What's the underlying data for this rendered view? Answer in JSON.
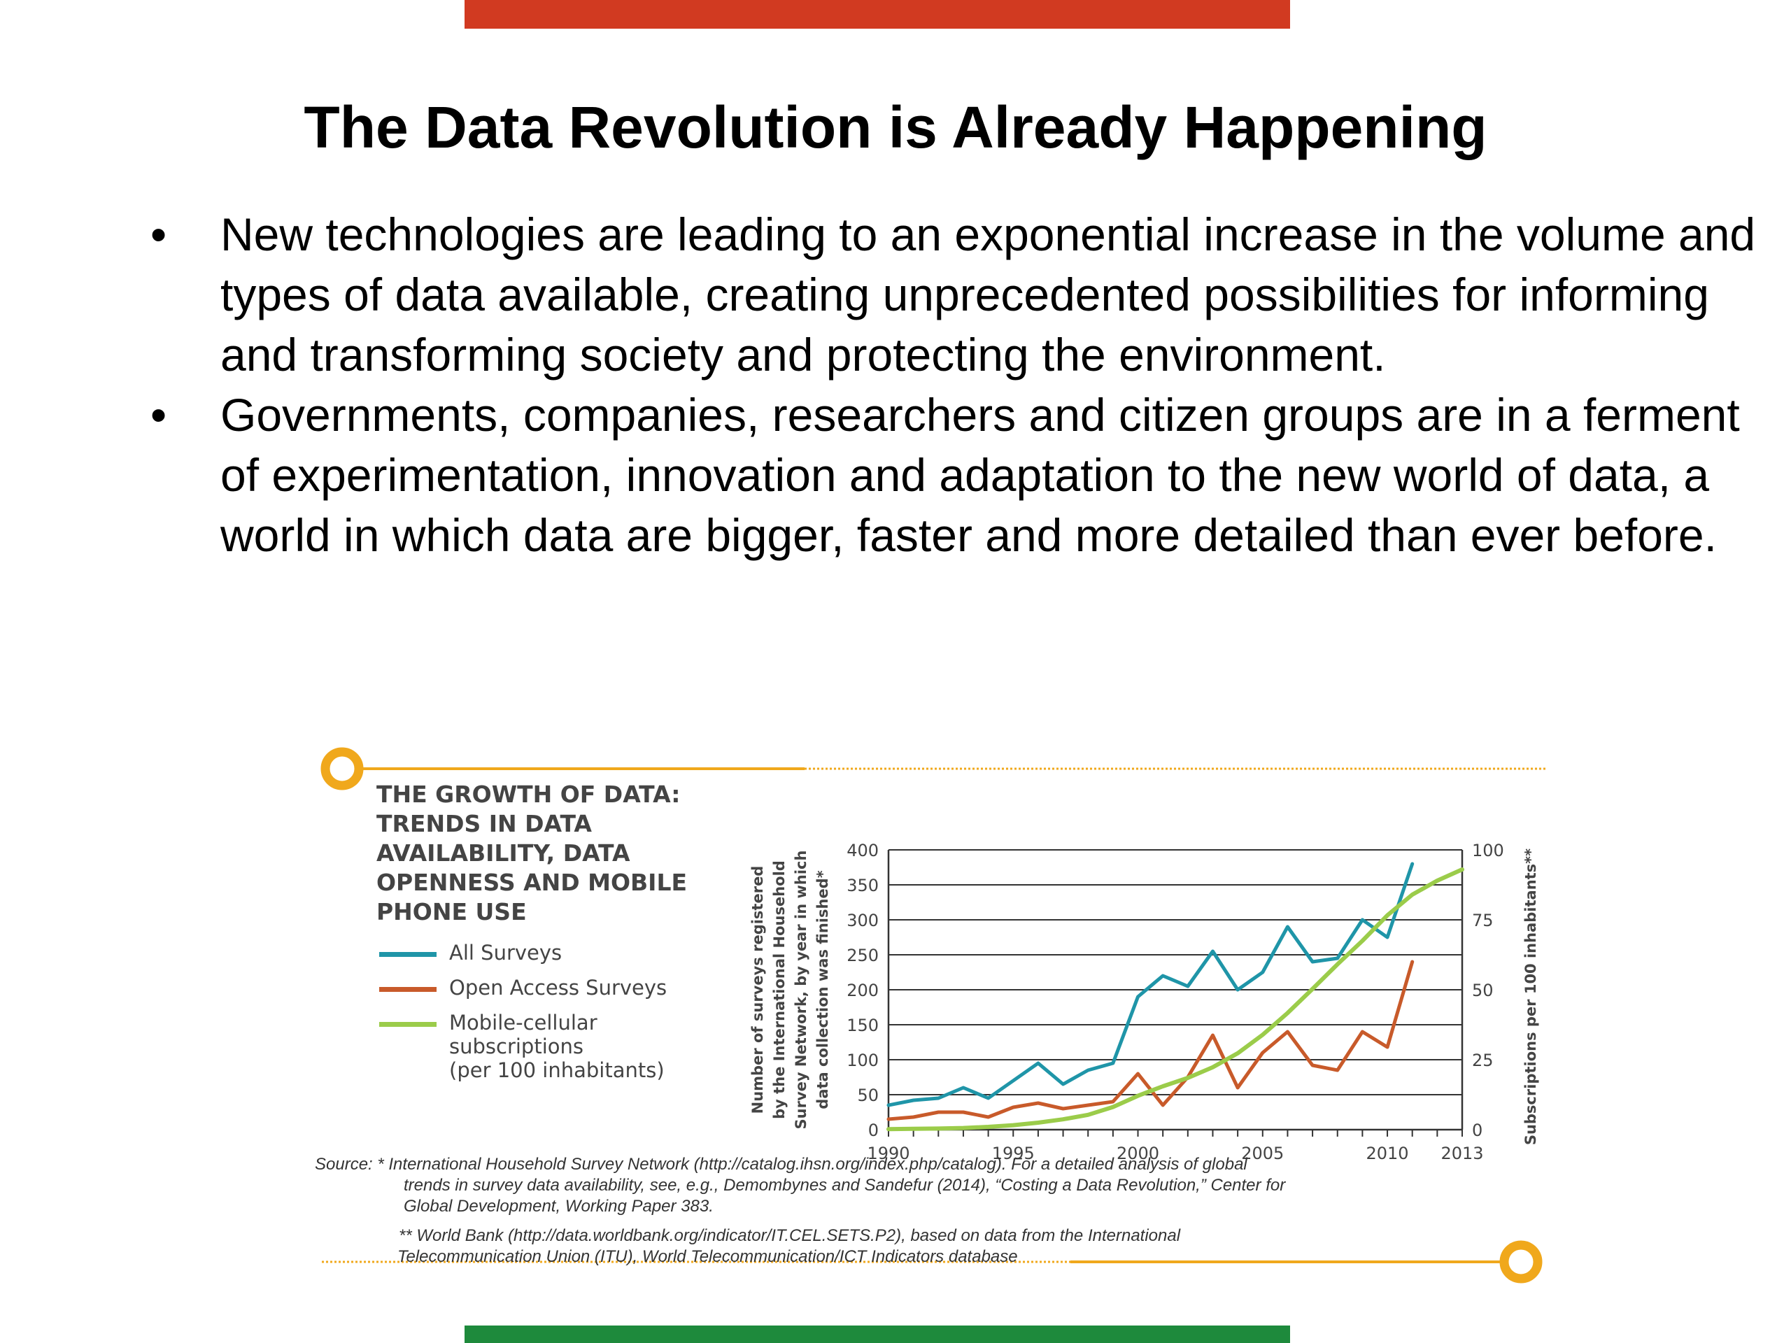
{
  "slide": {
    "title": "The Data Revolution is Already Happening",
    "bullet_glyph": "•",
    "bullets": [
      "New technologies are leading to an exponential increase in the volume and types of data available, creating unprecedented possibilities for informing and transforming society and protecting the environment.",
      "Governments, companies, researchers and citizen groups are in a ferment of experimentation, innovation and adaptation to the new world of data, a world in which data are bigger, faster and more detailed than ever before."
    ],
    "top_bar_color": "#d13a21",
    "bottom_bar_color": "#1e8a3c"
  },
  "figure": {
    "accent_color": "#f0a81c",
    "source_lines": [
      "Source: * International Household Survey Network (http://catalog.ihsn.org/index.php/catalog). For a detailed analysis of global",
      "trends in survey data availability, see, e.g., Demombynes and Sandefur (2014), “Costing a Data Revolution,” Center for",
      "Global Development, Working Paper 383.",
      "** World Bank (http://data.worldbank.org/indicator/IT.CEL.SETS.P2), based on data from the International",
      "Telecommunication Union (ITU), World Telecommunication/ICT Indicators database"
    ]
  },
  "chart_data": {
    "type": "line",
    "title": "THE GROWTH OF DATA: TRENDS IN DATA AVAILABILITY, DATA OPENNESS AND MOBILE PHONE USE",
    "ylabel": "Number of surveys registered by the International Household Survey Network, by year in which data collection was finished*",
    "ylabel_lines": [
      "Number of surveys registered",
      "by the International Household",
      "Survey Network, by year in which",
      "data collection was finished*"
    ],
    "y2label": "Subscriptions per 100 inhabitants**",
    "xlabel": "",
    "xlim": [
      1990,
      2013
    ],
    "ylim": [
      0,
      400
    ],
    "y2lim": [
      0,
      100
    ],
    "x_ticks": [
      1990,
      1995,
      2000,
      2005,
      2010,
      2013
    ],
    "y_ticks": [
      0,
      50,
      100,
      150,
      200,
      250,
      300,
      350,
      400
    ],
    "y2_ticks": [
      0,
      25,
      50,
      75,
      100
    ],
    "grid": true,
    "legend": "left",
    "series": [
      {
        "name": "All Surveys",
        "color": "#1f95a8",
        "axis": "left",
        "x": [
          1990,
          1991,
          1992,
          1993,
          1994,
          1995,
          1996,
          1997,
          1998,
          1999,
          2000,
          2001,
          2002,
          2003,
          2004,
          2005,
          2006,
          2007,
          2008,
          2009,
          2010,
          2011
        ],
        "values": [
          35,
          42,
          45,
          60,
          45,
          70,
          95,
          65,
          85,
          95,
          190,
          220,
          205,
          255,
          200,
          225,
          290,
          240,
          245,
          300,
          275,
          380
        ]
      },
      {
        "name": "Open Access Surveys",
        "color": "#c85a2a",
        "axis": "left",
        "x": [
          1990,
          1991,
          1992,
          1993,
          1994,
          1995,
          1996,
          1997,
          1998,
          1999,
          2000,
          2001,
          2002,
          2003,
          2004,
          2005,
          2006,
          2007,
          2008,
          2009,
          2010,
          2011
        ],
        "values": [
          15,
          18,
          25,
          25,
          18,
          32,
          38,
          30,
          35,
          40,
          80,
          35,
          75,
          135,
          60,
          110,
          140,
          92,
          85,
          140,
          118,
          240
        ]
      },
      {
        "name": "Mobile-cellular subscriptions (per 100 inhabitants)",
        "legend_lines": [
          "Mobile-cellular",
          "subscriptions",
          "(per 100 inhabitants)"
        ],
        "color": "#9bcc4a",
        "axis": "right",
        "x": [
          1990,
          1991,
          1992,
          1993,
          1994,
          1995,
          1996,
          1997,
          1998,
          1999,
          2000,
          2001,
          2002,
          2003,
          2004,
          2005,
          2006,
          2007,
          2008,
          2009,
          2010,
          2011,
          2012,
          2013
        ],
        "values": [
          0.2,
          0.3,
          0.4,
          0.6,
          1.0,
          1.6,
          2.5,
          3.7,
          5.3,
          8.1,
          12.1,
          15.5,
          18.5,
          22.3,
          27.3,
          33.9,
          41.7,
          50.3,
          59.1,
          67.5,
          76.6,
          84.0,
          89.0,
          93.0
        ]
      }
    ]
  }
}
